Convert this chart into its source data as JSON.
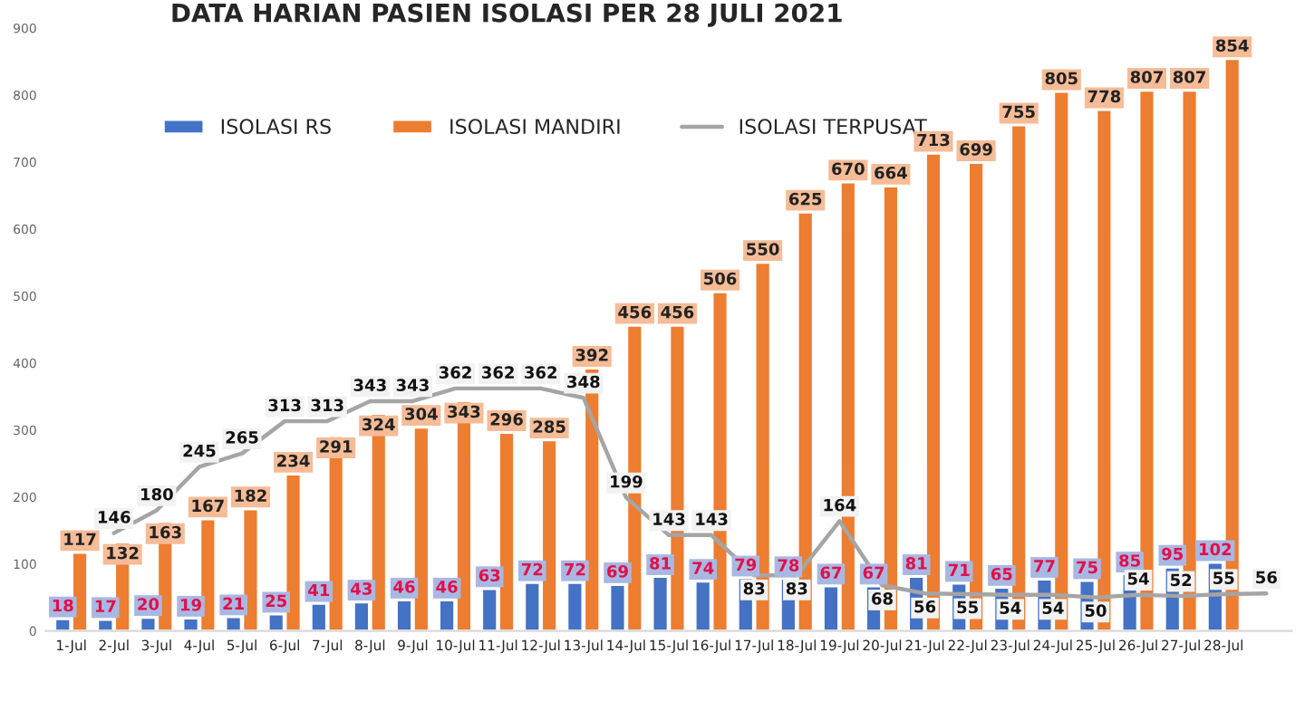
{
  "chart_data": {
    "type": "bar",
    "title": "DATA HARIAN PASIEN ISOLASI PER 28 JULI 2021",
    "categories": [
      "1-Jul",
      "2-Jul",
      "3-Jul",
      "4-Jul",
      "5-Jul",
      "6-Jul",
      "7-Jul",
      "8-Jul",
      "9-Jul",
      "10-Jul",
      "11-Jul",
      "12-Jul",
      "13-Jul",
      "14-Jul",
      "15-Jul",
      "16-Jul",
      "17-Jul",
      "18-Jul",
      "19-Jul",
      "20-Jul",
      "21-Jul",
      "22-Jul",
      "23-Jul",
      "24-Jul",
      "25-Jul",
      "26-Jul",
      "27-Jul",
      "28-Jul",
      null
    ],
    "series": [
      {
        "name": "ISOLASI RS",
        "color": "#4472c4",
        "values": [
          18,
          17,
          20,
          19,
          21,
          25,
          41,
          43,
          46,
          46,
          63,
          72,
          72,
          69,
          81,
          74,
          79,
          78,
          67,
          67,
          81,
          71,
          65,
          77,
          75,
          85,
          95,
          102,
          null
        ]
      },
      {
        "name": "ISOLASI MANDIRI",
        "color": "#ed7d31",
        "values": [
          117,
          132,
          163,
          167,
          182,
          234,
          291,
          324,
          304,
          343,
          296,
          285,
          392,
          456,
          456,
          506,
          550,
          625,
          670,
          664,
          713,
          699,
          755,
          805,
          778,
          807,
          807,
          854,
          null
        ]
      },
      {
        "name": "ISOLASI TERPUSAT",
        "type": "line",
        "color": "#a5a5a5",
        "values": [
          null,
          146,
          180,
          245,
          265,
          313,
          313,
          343,
          343,
          362,
          362,
          362,
          348,
          199,
          143,
          143,
          83,
          83,
          164,
          68,
          56,
          55,
          54,
          54,
          50,
          54,
          52,
          55,
          56
        ]
      }
    ],
    "ylim": [
      0,
      900
    ],
    "yticks": [
      0,
      100,
      200,
      300,
      400,
      500,
      600,
      700,
      800,
      900
    ],
    "data_labels": true,
    "grid": false,
    "legend": "top left"
  }
}
